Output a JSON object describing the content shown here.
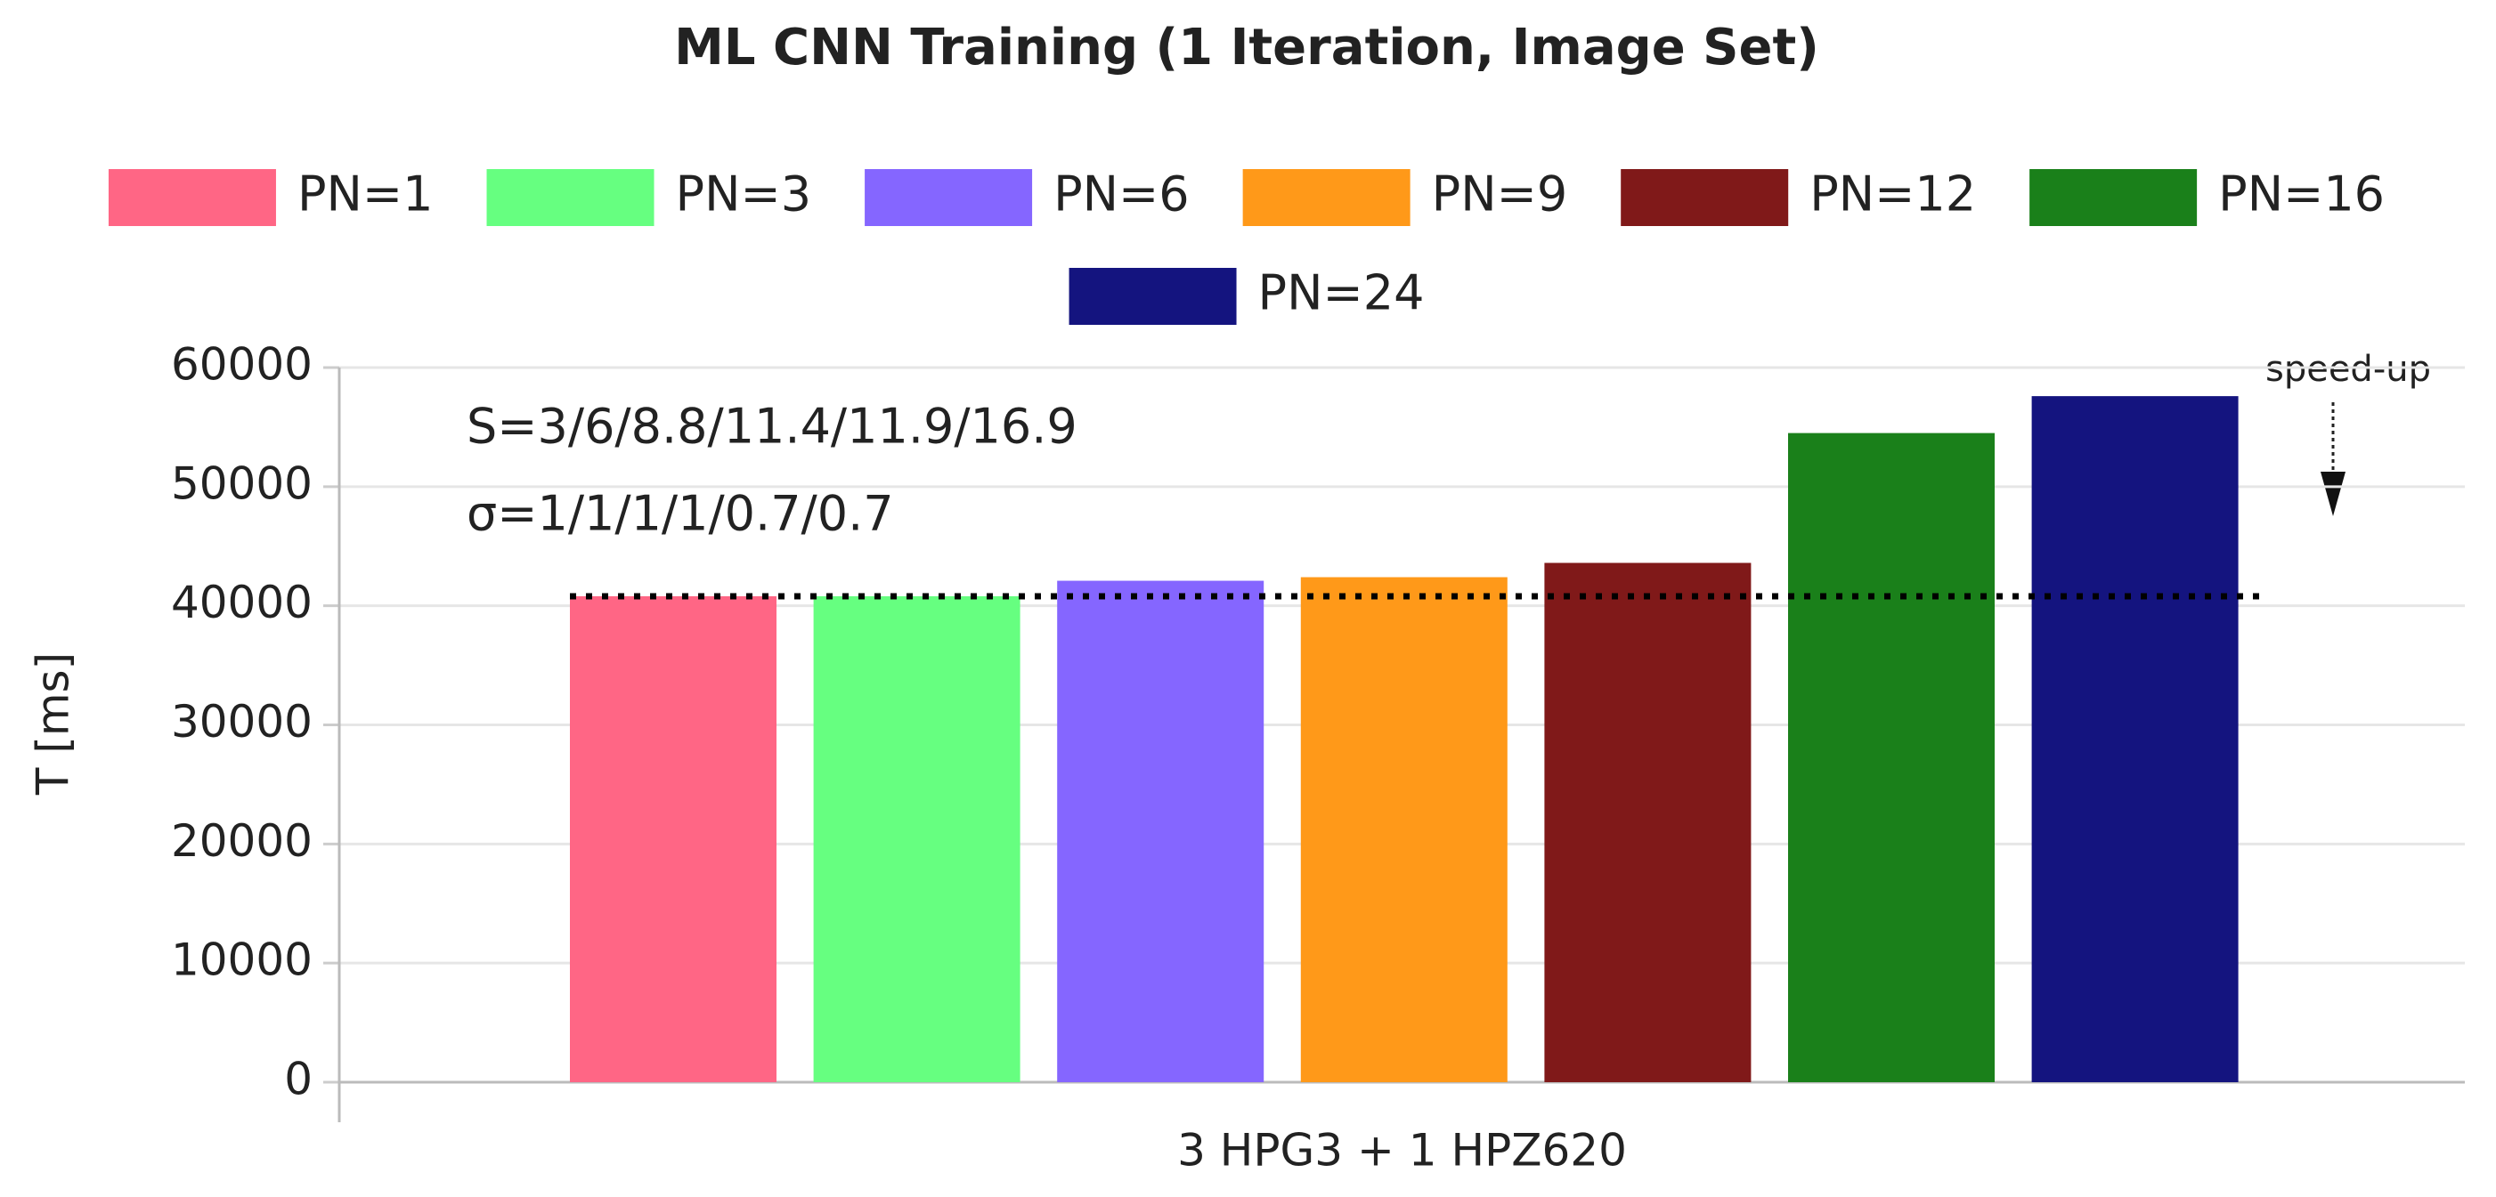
{
  "chart_data": {
    "type": "bar",
    "title": "ML CNN Training (1 Iteration, Image Set)",
    "categories": [
      "3 HPG3 + 1 HPZ620"
    ],
    "y_label": "T [ms]",
    "series": [
      {
        "name": "PN=1",
        "color": "#ff6685",
        "values": [
          40800
        ]
      },
      {
        "name": "PN=3",
        "color": "#66ff80",
        "values": [
          40800
        ]
      },
      {
        "name": "PN=6",
        "color": "#8566ff",
        "values": [
          42100
        ]
      },
      {
        "name": "PN=9",
        "color": "#ff9919",
        "values": [
          42400
        ]
      },
      {
        "name": "PN=12",
        "color": "#801919",
        "values": [
          43600
        ]
      },
      {
        "name": "PN=16",
        "color": "#1a801a",
        "values": [
          54500
        ]
      },
      {
        "name": "PN=24",
        "color": "#14147f",
        "values": [
          57600
        ]
      }
    ],
    "ylim": [
      0,
      60000
    ],
    "yticks": [
      0,
      10000,
      20000,
      30000,
      40000,
      50000,
      60000
    ],
    "grid": true,
    "legend": "top",
    "reference_line": 40800,
    "annotations": [
      "S=3/6/8.8/11.4/11.9/16.9",
      "σ=1/1/1/1/0.7/0.7",
      "speed-up"
    ]
  }
}
